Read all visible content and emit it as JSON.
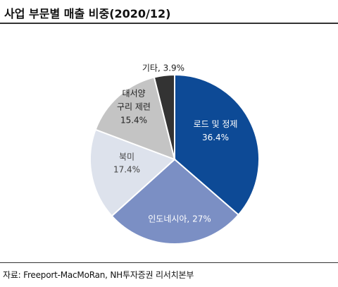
{
  "header": {
    "title": "사업 부문별 매출 비중(2020/12)"
  },
  "footer": {
    "source": "자료: Freeport-MacMoRan, NH투자증권 리서치본부"
  },
  "colors": {
    "slice_0": "#0d4a96",
    "slice_1": "#7b8fc4",
    "slice_2": "#dde2ec",
    "slice_3": "#c4c4c4",
    "slice_4": "#333333"
  },
  "chart_data": {
    "type": "pie",
    "unit": "%",
    "slices": [
      {
        "name": "로드 및 정제",
        "value": 36.4,
        "label_lines": [
          "로드 및 정제",
          "36.4%"
        ]
      },
      {
        "name": "인도네시아",
        "value": 27,
        "label_lines": [
          "인도네시아, 27%"
        ]
      },
      {
        "name": "북미",
        "value": 17.4,
        "label_lines": [
          "북미",
          "17.4%"
        ]
      },
      {
        "name": "대서양 구리 제련",
        "value": 15.4,
        "label_lines": [
          "대서양",
          "구리 제련",
          "15.4%"
        ]
      },
      {
        "name": "기타",
        "value": 3.9,
        "label_lines": [
          "기타, 3.9%"
        ]
      }
    ],
    "start": "12 o'clock",
    "direction": "clockwise"
  }
}
